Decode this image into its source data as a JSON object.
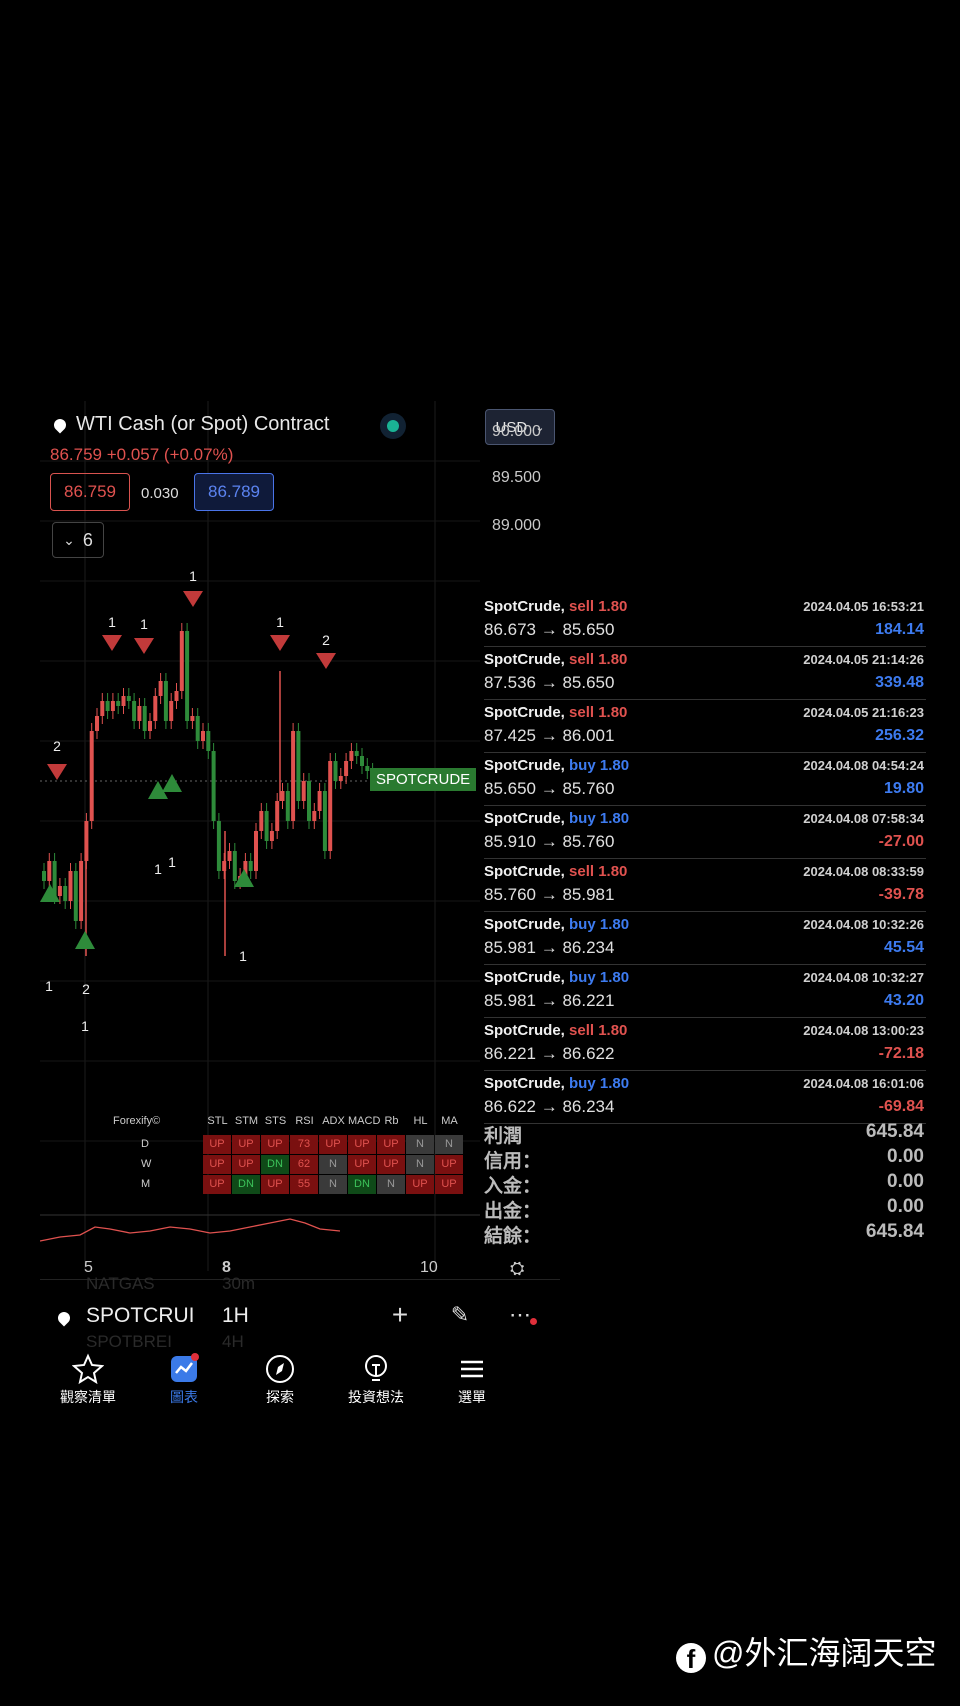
{
  "header": {
    "title": "WTI Cash (or Spot) Contract",
    "price_change": "86.759  +0.057 (+0.07%)",
    "bid": "86.759",
    "spread": "0.030",
    "ask": "86.789",
    "indicators_count": "6",
    "currency": "USD"
  },
  "price_axis": [
    "90.000",
    "89.500",
    "89.000"
  ],
  "symbol_tag": "SPOTCRUDE",
  "signal_labels": [
    "2",
    "1",
    "1",
    "1",
    "1",
    "2",
    "1",
    "1",
    "1",
    "1",
    "1",
    "2"
  ],
  "forexify": {
    "title": "Forexify©",
    "columns": [
      "STL",
      "STM",
      "STS",
      "RSI",
      "ADX",
      "MACD",
      "Rb",
      "HL",
      "MA"
    ],
    "rows": [
      {
        "label": "D",
        "cells": [
          "UP",
          "UP",
          "UP",
          "73",
          "UP",
          "UP",
          "UP",
          "N",
          "N"
        ]
      },
      {
        "label": "W",
        "cells": [
          "UP",
          "UP",
          "DN",
          "62",
          "N",
          "UP",
          "UP",
          "N",
          "UP"
        ]
      },
      {
        "label": "M",
        "cells": [
          "UP",
          "DN",
          "UP",
          "55",
          "N",
          "DN",
          "N",
          "UP",
          "UP"
        ]
      }
    ]
  },
  "time_axis": [
    "5",
    "8",
    "10"
  ],
  "toolbar": {
    "symbol": "SPOTCRUI",
    "interval": "1H",
    "ghost_top": "NATGAS",
    "ghost_top_interval": "30m",
    "ghost_bottom": "SPOTBREI",
    "ghost_bottom_interval": "4H"
  },
  "tabs": [
    {
      "label": "觀察清單",
      "icon": "star-icon"
    },
    {
      "label": "圖表",
      "icon": "chart-icon"
    },
    {
      "label": "探索",
      "icon": "compass-icon"
    },
    {
      "label": "投資想法",
      "icon": "lightbulb-icon"
    },
    {
      "label": "選單",
      "icon": "menu-icon"
    }
  ],
  "trades": [
    {
      "symbol": "SpotCrude,",
      "side": "sell 1.80",
      "type": "sell",
      "time": "2024.04.05 16:53:21",
      "prices": "86.673 → 85.650",
      "pnl": "184.14"
    },
    {
      "symbol": "SpotCrude,",
      "side": "sell 1.80",
      "type": "sell",
      "time": "2024.04.05 21:14:26",
      "prices": "87.536 → 85.650",
      "pnl": "339.48"
    },
    {
      "symbol": "SpotCrude,",
      "side": "sell 1.80",
      "type": "sell",
      "time": "2024.04.05 21:16:23",
      "prices": "87.425 → 86.001",
      "pnl": "256.32"
    },
    {
      "symbol": "SpotCrude,",
      "side": "buy 1.80",
      "type": "buy",
      "time": "2024.04.08 04:54:24",
      "prices": "85.650 → 85.760",
      "pnl": "19.80"
    },
    {
      "symbol": "SpotCrude,",
      "side": "buy 1.80",
      "type": "buy",
      "time": "2024.04.08 07:58:34",
      "prices": "85.910 → 85.760",
      "pnl": "-27.00"
    },
    {
      "symbol": "SpotCrude,",
      "side": "sell 1.80",
      "type": "sell",
      "time": "2024.04.08 08:33:59",
      "prices": "85.760 → 85.981",
      "pnl": "-39.78"
    },
    {
      "symbol": "SpotCrude,",
      "side": "buy 1.80",
      "type": "buy",
      "time": "2024.04.08 10:32:26",
      "prices": "85.981 → 86.234",
      "pnl": "45.54"
    },
    {
      "symbol": "SpotCrude,",
      "side": "buy 1.80",
      "type": "buy",
      "time": "2024.04.08 10:32:27",
      "prices": "85.981 → 86.221",
      "pnl": "43.20"
    },
    {
      "symbol": "SpotCrude,",
      "side": "sell 1.80",
      "type": "sell",
      "time": "2024.04.08 13:00:23",
      "prices": "86.221 → 86.622",
      "pnl": "-72.18"
    },
    {
      "symbol": "SpotCrude,",
      "side": "buy 1.80",
      "type": "buy",
      "time": "2024.04.08 16:01:06",
      "prices": "86.622 → 86.234",
      "pnl": "-69.84"
    }
  ],
  "summary": [
    {
      "label": "利潤",
      "value": "645.84"
    },
    {
      "label": "信用：",
      "value": "0.00"
    },
    {
      "label": "入金：",
      "value": "0.00"
    },
    {
      "label": "出金：",
      "value": "0.00"
    },
    {
      "label": "結餘：",
      "value": "645.84"
    }
  ],
  "watermark": "@外汇海阔天空",
  "colors": {
    "up": "#e0524f",
    "down": "#2e8b3a",
    "buy": "#3d7bf0",
    "sell": "#e0524f",
    "brand": "#3b7ae8"
  }
}
